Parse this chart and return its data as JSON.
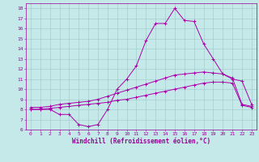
{
  "xlabel": "Windchill (Refroidissement éolien,°C)",
  "xlim": [
    -0.5,
    23.5
  ],
  "ylim": [
    6,
    18.5
  ],
  "yticks": [
    6,
    7,
    8,
    9,
    10,
    11,
    12,
    13,
    14,
    15,
    16,
    17,
    18
  ],
  "xticks": [
    0,
    1,
    2,
    3,
    4,
    5,
    6,
    7,
    8,
    9,
    10,
    11,
    12,
    13,
    14,
    15,
    16,
    17,
    18,
    19,
    20,
    21,
    22,
    23
  ],
  "background_color": "#c5e8e8",
  "line_color": "#aa00aa",
  "grid_color": "#9dc8c8",
  "line1_x": [
    0,
    1,
    2,
    3,
    4,
    5,
    6,
    7,
    8,
    9,
    10,
    11,
    12,
    13,
    14,
    15,
    16,
    17,
    18,
    19,
    20,
    21,
    22,
    23
  ],
  "line1_y": [
    8.0,
    8.0,
    8.0,
    7.5,
    7.5,
    6.5,
    6.3,
    6.5,
    8.0,
    10.0,
    11.0,
    12.3,
    14.8,
    16.5,
    16.5,
    18.0,
    16.8,
    16.7,
    14.5,
    13.0,
    11.5,
    11.0,
    10.8,
    8.5
  ],
  "line2_x": [
    0,
    1,
    2,
    3,
    4,
    5,
    6,
    7,
    8,
    9,
    10,
    11,
    12,
    13,
    14,
    15,
    16,
    17,
    18,
    19,
    20,
    21,
    22,
    23
  ],
  "line2_y": [
    8.2,
    8.2,
    8.3,
    8.5,
    8.6,
    8.7,
    8.8,
    9.0,
    9.3,
    9.6,
    9.9,
    10.2,
    10.5,
    10.8,
    11.1,
    11.4,
    11.5,
    11.6,
    11.7,
    11.6,
    11.5,
    11.1,
    8.5,
    8.3
  ],
  "line3_x": [
    0,
    1,
    2,
    3,
    4,
    5,
    6,
    7,
    8,
    9,
    10,
    11,
    12,
    13,
    14,
    15,
    16,
    17,
    18,
    19,
    20,
    21,
    22,
    23
  ],
  "line3_y": [
    8.0,
    8.0,
    8.1,
    8.2,
    8.3,
    8.4,
    8.5,
    8.6,
    8.7,
    8.9,
    9.0,
    9.2,
    9.4,
    9.6,
    9.8,
    10.0,
    10.2,
    10.4,
    10.6,
    10.7,
    10.7,
    10.6,
    8.4,
    8.2
  ],
  "marker": "+",
  "marker_size": 2.5,
  "linewidth": 0.7,
  "tick_fontsize": 4.5,
  "label_fontsize": 5.5,
  "tick_color": "#990099",
  "label_color": "#990099"
}
